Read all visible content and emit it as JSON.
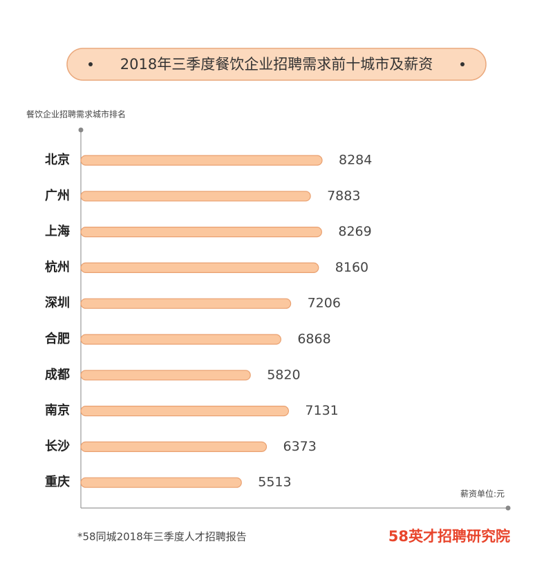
{
  "chart_data": {
    "type": "bar",
    "orientation": "horizontal",
    "title": "2018年三季度餐饮企业招聘需求前十城市及薪资",
    "y_label": "餐饮企业招聘需求城市排名",
    "unit_note": "薪资单位:元",
    "footnote": "*58同城2018年三季度人才招聘报告",
    "logo": "58英才招聘研究院",
    "categories": [
      "北京",
      "广州",
      "上海",
      "杭州",
      "深圳",
      "合肥",
      "成都",
      "南京",
      "长沙",
      "重庆"
    ],
    "values": [
      8284,
      7883,
      8269,
      8160,
      7206,
      6868,
      5820,
      7131,
      6373,
      5513
    ],
    "color": "#fbc79e",
    "grid": false
  }
}
